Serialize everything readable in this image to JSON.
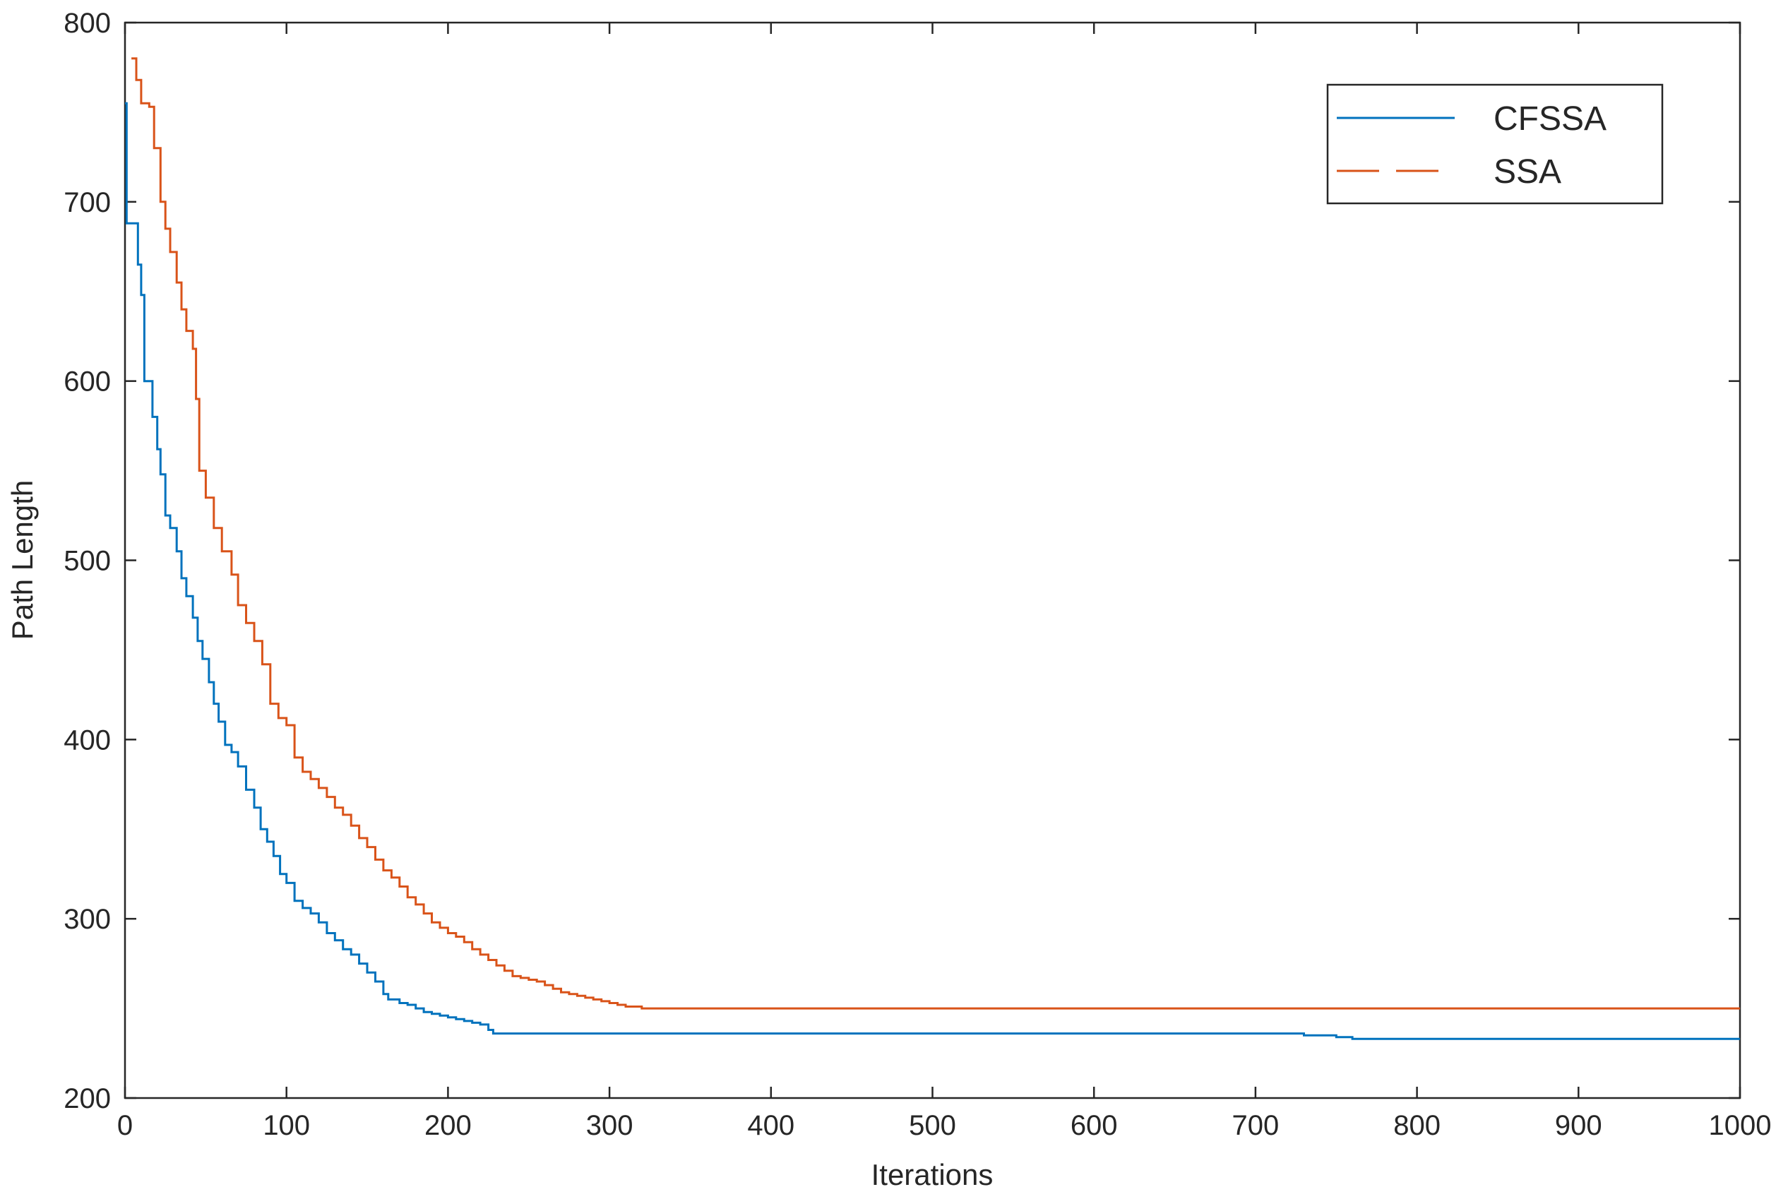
{
  "chart_data": {
    "type": "line",
    "xlabel": "Iterations",
    "ylabel": "Path Length",
    "xlim": [
      0,
      1000
    ],
    "ylim": [
      200,
      800
    ],
    "xticks": [
      0,
      100,
      200,
      300,
      400,
      500,
      600,
      700,
      800,
      900,
      1000
    ],
    "yticks": [
      200,
      300,
      400,
      500,
      600,
      700,
      800
    ],
    "grid": false,
    "legend_position": "top-right",
    "series": [
      {
        "name": "CFSSA",
        "color": "#0072BD",
        "style": "solid",
        "x": [
          0,
          1,
          2,
          5,
          8,
          10,
          12,
          15,
          17,
          20,
          22,
          25,
          28,
          32,
          35,
          38,
          42,
          45,
          48,
          52,
          55,
          58,
          62,
          66,
          70,
          75,
          80,
          84,
          88,
          92,
          96,
          100,
          105,
          110,
          115,
          120,
          125,
          130,
          135,
          140,
          145,
          150,
          155,
          160,
          163,
          170,
          175,
          180,
          185,
          190,
          195,
          200,
          205,
          210,
          215,
          220,
          225,
          228,
          232,
          260,
          300,
          400,
          500,
          600,
          700,
          730,
          750,
          760,
          800,
          900,
          1000
        ],
        "values": [
          755,
          688,
          688,
          688,
          665,
          648,
          600,
          600,
          580,
          562,
          548,
          525,
          518,
          505,
          490,
          480,
          468,
          455,
          445,
          432,
          420,
          410,
          397,
          393,
          385,
          372,
          362,
          350,
          343,
          335,
          325,
          320,
          310,
          306,
          303,
          298,
          292,
          288,
          283,
          280,
          275,
          270,
          265,
          258,
          255,
          253,
          252,
          250,
          248,
          247,
          246,
          245,
          244,
          243,
          242,
          241,
          238,
          236,
          236,
          236,
          236,
          236,
          236,
          236,
          236,
          235,
          234,
          233,
          233,
          233,
          233
        ]
      },
      {
        "name": "SSA",
        "color": "#D95319",
        "style": "dashed",
        "x": [
          4,
          7,
          10,
          15,
          18,
          22,
          25,
          28,
          32,
          35,
          38,
          42,
          44,
          46,
          50,
          55,
          60,
          66,
          70,
          75,
          80,
          85,
          90,
          95,
          100,
          105,
          110,
          115,
          120,
          125,
          130,
          135,
          140,
          145,
          150,
          155,
          160,
          165,
          170,
          175,
          180,
          185,
          190,
          195,
          200,
          205,
          210,
          215,
          220,
          225,
          230,
          235,
          240,
          245,
          250,
          255,
          260,
          265,
          270,
          275,
          280,
          285,
          290,
          295,
          300,
          305,
          310,
          315,
          320,
          325,
          330,
          340,
          400,
          500,
          600,
          700,
          800,
          900,
          1000
        ],
        "values": [
          780,
          768,
          755,
          753,
          730,
          700,
          685,
          672,
          655,
          640,
          628,
          618,
          590,
          550,
          535,
          518,
          505,
          492,
          475,
          465,
          455,
          442,
          420,
          412,
          408,
          390,
          382,
          378,
          373,
          368,
          362,
          358,
          352,
          345,
          340,
          333,
          327,
          323,
          318,
          312,
          308,
          303,
          298,
          295,
          292,
          290,
          287,
          283,
          280,
          277,
          274,
          271,
          268,
          267,
          266,
          265,
          263,
          261,
          259,
          258,
          257,
          256,
          255,
          254,
          253,
          252,
          251,
          251,
          250,
          250,
          250,
          250,
          250,
          250,
          250,
          250,
          250,
          250,
          250
        ]
      }
    ]
  }
}
